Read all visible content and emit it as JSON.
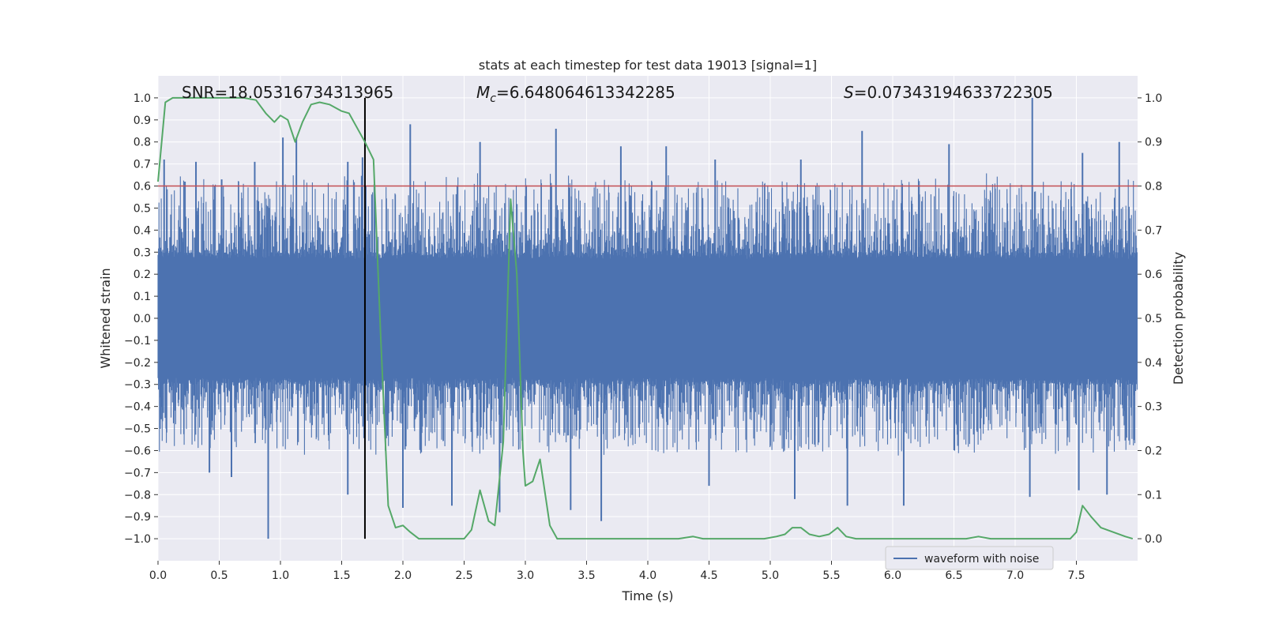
{
  "chart_data": {
    "type": "line",
    "title": "stats at each timestep for test data 19013 [signal=1]",
    "xlabel": "Time (s)",
    "ylabel": "Whitened strain",
    "y2label": "Detection probability",
    "xlim": [
      0.0,
      8.0
    ],
    "ylim": [
      -1.1,
      1.1
    ],
    "y2lim": [
      -0.05,
      1.05
    ],
    "xticks": [
      0.0,
      0.5,
      1.0,
      1.5,
      2.0,
      2.5,
      3.0,
      3.5,
      4.0,
      4.5,
      5.0,
      5.5,
      6.0,
      6.5,
      7.0,
      7.5
    ],
    "xtick_labels": [
      "0.0",
      "0.5",
      "1.0",
      "1.5",
      "2.0",
      "2.5",
      "3.0",
      "3.5",
      "4.0",
      "4.5",
      "5.0",
      "5.5",
      "6.0",
      "6.5",
      "7.0",
      "7.5"
    ],
    "yticks": [
      1.0,
      0.9,
      0.8,
      0.7,
      0.6,
      0.5,
      0.4,
      0.3,
      0.2,
      0.1,
      0.0,
      -0.1,
      -0.2,
      -0.3,
      -0.4,
      -0.5,
      -0.6,
      -0.7,
      -0.8,
      -0.9,
      -1.0
    ],
    "ytick_labels": [
      "1.0",
      "0.9",
      "0.8",
      "0.7",
      "0.6",
      "0.5",
      "0.4",
      "0.3",
      "0.2",
      "0.1",
      "0.0",
      "−0.1",
      "−0.2",
      "−0.3",
      "−0.4",
      "−0.5",
      "−0.6",
      "−0.7",
      "−0.8",
      "−0.9",
      "−1.0"
    ],
    "y2ticks": [
      1.0,
      0.9,
      0.8,
      0.7,
      0.6,
      0.5,
      0.4,
      0.3,
      0.2,
      0.1,
      0.0
    ],
    "y2tick_labels": [
      "1.0",
      "0.9",
      "0.8",
      "0.7",
      "0.6",
      "0.5",
      "0.4",
      "0.3",
      "0.2",
      "0.1",
      "0.0"
    ],
    "annotations": {
      "snr": "SNR=18.05316734313965",
      "mc_symbol": "M",
      "mc_sub": "c",
      "mc_value": "=6.648064613342285",
      "s_symbol": "S",
      "s_value": "=0.07343194633722305"
    },
    "threshold": {
      "value": 0.8,
      "axis": "y2",
      "color": "#c44e52"
    },
    "marker_line": {
      "x": 1.69,
      "ymin": -1.0,
      "ymax": 1.0,
      "color": "#000000"
    },
    "series": [
      {
        "name": "waveform with noise",
        "axis": "y",
        "color": "#4c72b0",
        "kind": "noisy-waveform",
        "core_band": [
          -0.2,
          0.2
        ],
        "spikes": [
          {
            "x": 0.05,
            "y": 0.72
          },
          {
            "x": 0.22,
            "y": 0.62
          },
          {
            "x": 0.31,
            "y": 0.71
          },
          {
            "x": 0.52,
            "y": 0.63
          },
          {
            "x": 0.79,
            "y": 0.71
          },
          {
            "x": 1.02,
            "y": 0.82
          },
          {
            "x": 1.13,
            "y": 0.82
          },
          {
            "x": 1.55,
            "y": 0.71
          },
          {
            "x": 1.67,
            "y": 0.73
          },
          {
            "x": 2.06,
            "y": 0.88
          },
          {
            "x": 2.63,
            "y": 0.8
          },
          {
            "x": 3.25,
            "y": 0.86
          },
          {
            "x": 3.78,
            "y": 0.78
          },
          {
            "x": 4.15,
            "y": 0.78
          },
          {
            "x": 4.55,
            "y": 0.72
          },
          {
            "x": 5.25,
            "y": 0.72
          },
          {
            "x": 5.75,
            "y": 0.85
          },
          {
            "x": 6.46,
            "y": 0.79
          },
          {
            "x": 7.14,
            "y": 1.0
          },
          {
            "x": 7.55,
            "y": 0.75
          },
          {
            "x": 7.85,
            "y": 0.8
          },
          {
            "x": 0.42,
            "y": -0.7
          },
          {
            "x": 0.6,
            "y": -0.72
          },
          {
            "x": 0.9,
            "y": -1.0
          },
          {
            "x": 1.55,
            "y": -0.8
          },
          {
            "x": 2.0,
            "y": -0.86
          },
          {
            "x": 2.4,
            "y": -0.85
          },
          {
            "x": 2.79,
            "y": -0.88
          },
          {
            "x": 3.37,
            "y": -0.87
          },
          {
            "x": 3.62,
            "y": -0.92
          },
          {
            "x": 4.5,
            "y": -0.76
          },
          {
            "x": 5.2,
            "y": -0.82
          },
          {
            "x": 5.63,
            "y": -0.85
          },
          {
            "x": 6.09,
            "y": -0.85
          },
          {
            "x": 7.12,
            "y": -0.81
          },
          {
            "x": 7.52,
            "y": -0.78
          },
          {
            "x": 7.75,
            "y": -0.8
          }
        ]
      },
      {
        "name": "detection probability",
        "axis": "y2",
        "color": "#55a868",
        "x": [
          0.0,
          0.06,
          0.12,
          0.2,
          0.3,
          0.4,
          0.5,
          0.6,
          0.7,
          0.8,
          0.88,
          0.95,
          1.0,
          1.06,
          1.12,
          1.18,
          1.25,
          1.32,
          1.4,
          1.5,
          1.56,
          1.62,
          1.69,
          1.76,
          1.82,
          1.88,
          1.94,
          2.0,
          2.06,
          2.13,
          2.2,
          2.3,
          2.4,
          2.5,
          2.56,
          2.63,
          2.7,
          2.75,
          2.82,
          2.88,
          2.93,
          2.98,
          3.0,
          3.06,
          3.12,
          3.2,
          3.26,
          3.32,
          3.4,
          3.5,
          3.7,
          3.9,
          4.1,
          4.25,
          4.37,
          4.45,
          4.6,
          4.8,
          4.95,
          5.05,
          5.12,
          5.18,
          5.25,
          5.32,
          5.4,
          5.48,
          5.55,
          5.62,
          5.7,
          5.8,
          5.9,
          6.1,
          6.3,
          6.5,
          6.6,
          6.7,
          6.8,
          6.9,
          7.0,
          7.2,
          7.4,
          7.45,
          7.5,
          7.55,
          7.62,
          7.7,
          7.8,
          7.9,
          7.96
        ],
        "values": [
          0.81,
          0.99,
          1.0,
          1.0,
          1.0,
          1.0,
          1.0,
          1.0,
          1.0,
          0.995,
          0.965,
          0.945,
          0.96,
          0.95,
          0.9,
          0.945,
          0.985,
          0.99,
          0.985,
          0.97,
          0.965,
          0.935,
          0.9,
          0.86,
          0.45,
          0.075,
          0.025,
          0.03,
          0.015,
          0.0,
          0.0,
          0.0,
          0.0,
          0.0,
          0.02,
          0.11,
          0.04,
          0.03,
          0.22,
          0.77,
          0.6,
          0.2,
          0.12,
          0.13,
          0.18,
          0.03,
          0.0,
          0.0,
          0.0,
          0.0,
          0.0,
          0.0,
          0.0,
          0.0,
          0.005,
          0.0,
          0.0,
          0.0,
          0.0,
          0.005,
          0.01,
          0.025,
          0.025,
          0.01,
          0.005,
          0.01,
          0.025,
          0.005,
          0.0,
          0.0,
          0.0,
          0.0,
          0.0,
          0.0,
          0.0,
          0.005,
          0.0,
          0.0,
          0.0,
          0.0,
          0.0,
          0.0,
          0.015,
          0.075,
          0.05,
          0.025,
          0.015,
          0.005,
          0.0
        ]
      }
    ],
    "legend": {
      "entries": [
        "waveform with noise"
      ],
      "location": "lower-right"
    }
  },
  "colors": {
    "plot_background": "#eaeaf2",
    "grid": "#ffffff",
    "waveform": "#4c72b0",
    "probability": "#55a868",
    "threshold": "#c44e52",
    "marker": "#000000"
  }
}
